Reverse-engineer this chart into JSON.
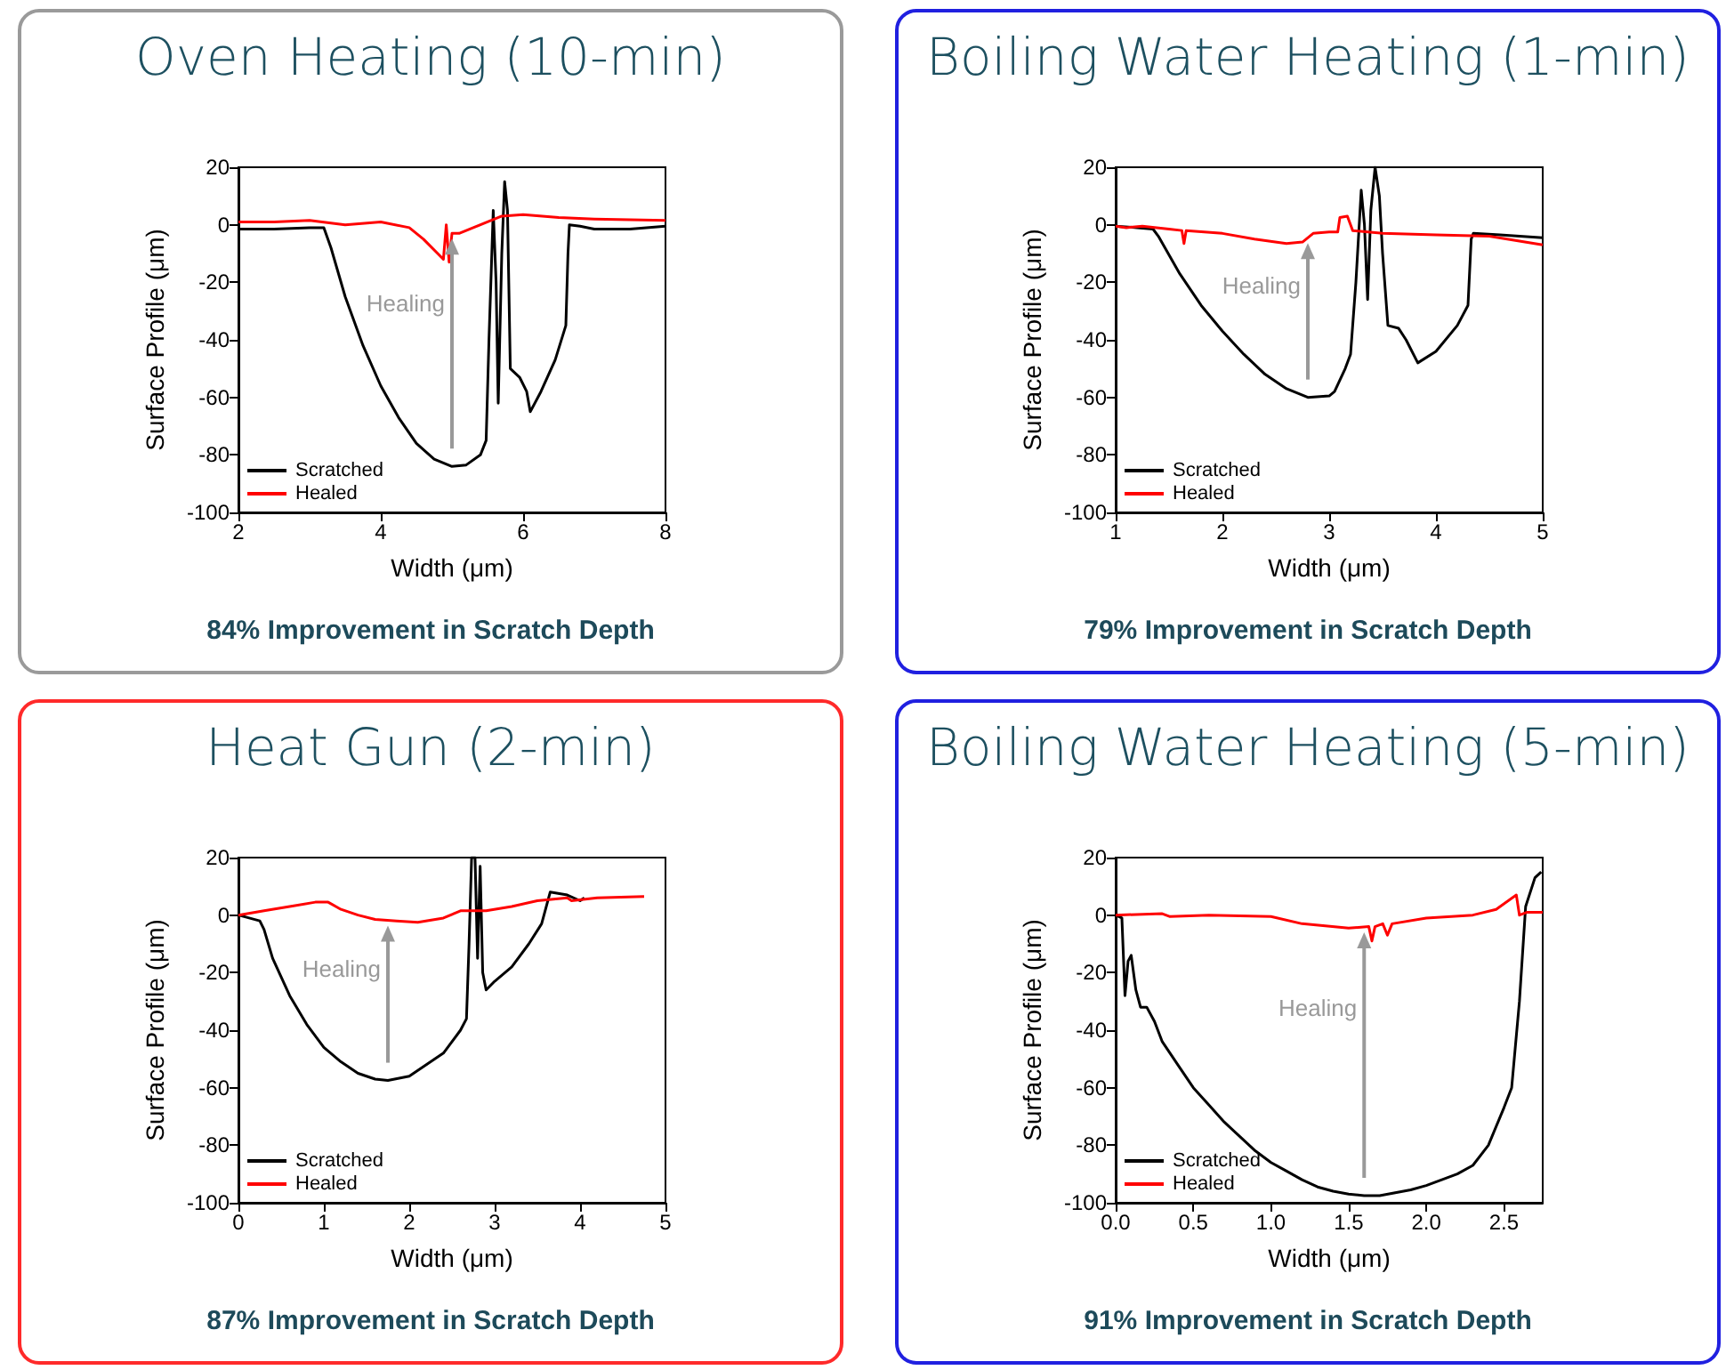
{
  "chart_data": [
    {
      "type": "line",
      "title": "Oven Heating (10-min)",
      "xlabel": "Width (μm)",
      "ylabel": "Surface Profile (μm)",
      "xlim": [
        2,
        8
      ],
      "xticks": [
        2,
        4,
        6,
        8
      ],
      "ylim": [
        -100,
        20
      ],
      "yticks": [
        -100,
        -80,
        -60,
        -40,
        -20,
        0,
        20
      ],
      "grid": false,
      "legend": "bottom left",
      "marker": "none",
      "line_style": "solid",
      "annotations": [
        "Healing",
        "84% Improvement in Scratch Depth"
      ],
      "series": [
        {
          "name": "Scratched",
          "color": "#000000",
          "x": [
            2,
            2.5,
            3.0,
            3.2,
            3.3,
            3.5,
            3.75,
            4.0,
            4.25,
            4.5,
            4.75,
            5.0,
            5.2,
            5.4,
            5.48,
            5.52,
            5.58,
            5.62,
            5.65,
            5.7,
            5.74,
            5.78,
            5.82,
            5.95,
            6.05,
            6.1,
            6.25,
            6.45,
            6.6,
            6.63,
            6.65,
            6.8,
            7.0,
            7.5,
            8
          ],
          "values": [
            -1.5,
            -1.5,
            -1,
            -1,
            -8,
            -25,
            -42,
            -56,
            -67,
            -76,
            -81.5,
            -84,
            -83.5,
            -80,
            -75,
            -40,
            5,
            -20,
            -62,
            -10,
            15,
            5,
            -50,
            -53,
            -58,
            -65,
            -58,
            -47,
            -35,
            -10,
            0,
            -0.5,
            -1.5,
            -1.5,
            -0.5
          ]
        },
        {
          "name": "Healed",
          "color": "#ff0000",
          "x": [
            2,
            2.5,
            3.0,
            3.5,
            4.0,
            4.4,
            4.6,
            4.8,
            4.88,
            4.92,
            4.96,
            5.0,
            5.1,
            5.3,
            5.5,
            5.7,
            6.0,
            6.5,
            7.0,
            8
          ],
          "values": [
            1,
            1,
            1.5,
            0,
            1,
            -1,
            -5,
            -10,
            -12,
            0,
            -13,
            -3,
            -3,
            -1,
            1,
            3,
            3.5,
            2.5,
            2,
            1.5
          ]
        }
      ]
    },
    {
      "type": "line",
      "title": "Boiling Water Heating (1-min)",
      "xlabel": "Width (μm)",
      "ylabel": "Surface Profile (μm)",
      "xlim": [
        1,
        5
      ],
      "xticks": [
        1,
        2,
        3,
        4,
        5
      ],
      "ylim": [
        -100,
        20
      ],
      "yticks": [
        -100,
        -80,
        -60,
        -40,
        -20,
        0,
        20
      ],
      "grid": false,
      "legend": "bottom left",
      "marker": "none",
      "line_style": "solid",
      "annotations": [
        "Healing",
        "79% Improvement in Scratch Depth"
      ],
      "series": [
        {
          "name": "Scratched",
          "color": "#000000",
          "x": [
            1,
            1.2,
            1.35,
            1.4,
            1.6,
            1.8,
            2.0,
            2.2,
            2.4,
            2.6,
            2.8,
            3.0,
            3.05,
            3.15,
            3.2,
            3.25,
            3.3,
            3.33,
            3.36,
            3.39,
            3.43,
            3.47,
            3.5,
            3.55,
            3.65,
            3.72,
            3.83,
            4.0,
            4.2,
            4.3,
            4.33,
            4.35,
            4.6,
            5
          ],
          "values": [
            -0.5,
            -1,
            -1.5,
            -4,
            -17,
            -28,
            -37,
            -45,
            -52,
            -57,
            -60,
            -59.5,
            -58,
            -50,
            -45,
            -20,
            12,
            0,
            -26,
            5,
            20,
            10,
            -10,
            -35,
            -36,
            -40,
            -48,
            -44,
            -35,
            -28,
            -5,
            -3,
            -3.5,
            -4.5
          ]
        },
        {
          "name": "Healed",
          "color": "#ff0000",
          "x": [
            1,
            1.1,
            1.25,
            1.5,
            1.62,
            1.64,
            1.66,
            2.0,
            2.3,
            2.6,
            2.75,
            2.85,
            3.0,
            3.08,
            3.1,
            3.17,
            3.22,
            3.5,
            4.0,
            4.5,
            5
          ],
          "values": [
            -0.5,
            -1,
            -0.5,
            -1.5,
            -2,
            -6.5,
            -2,
            -3,
            -5,
            -6.5,
            -6,
            -3,
            -2.5,
            -2.5,
            2.5,
            3,
            -2,
            -3,
            -3.5,
            -4,
            -7
          ]
        }
      ]
    },
    {
      "type": "line",
      "title": "Heat Gun (2-min)",
      "xlabel": "Width (μm)",
      "ylabel": "Surface Profile (μm)",
      "xlim": [
        0,
        5
      ],
      "xticks": [
        0,
        1,
        2,
        3,
        4,
        5
      ],
      "ylim": [
        -100,
        20
      ],
      "yticks": [
        -100,
        -80,
        -60,
        -40,
        -20,
        0,
        20
      ],
      "grid": false,
      "legend": "bottom left",
      "marker": "none",
      "line_style": "solid",
      "annotations": [
        "Healing",
        "87% Improvement in Scratch Depth"
      ],
      "series": [
        {
          "name": "Scratched",
          "color": "#000000",
          "x": [
            0,
            0.25,
            0.3,
            0.4,
            0.6,
            0.8,
            1.0,
            1.2,
            1.4,
            1.6,
            1.75,
            2.0,
            2.2,
            2.4,
            2.6,
            2.67,
            2.7,
            2.73,
            2.77,
            2.8,
            2.83,
            2.86,
            2.9,
            3.0,
            3.2,
            3.4,
            3.55,
            3.65,
            3.85,
            4.0,
            4.05
          ],
          "values": [
            0,
            -2,
            -5,
            -15,
            -28,
            -38,
            -46,
            -51,
            -55,
            -57,
            -57.5,
            -56,
            -52,
            -48,
            -40,
            -36,
            -10,
            20,
            20,
            -15,
            17,
            -20,
            -26,
            -23,
            -18,
            -10,
            -3,
            8,
            7,
            5,
            6
          ]
        },
        {
          "name": "Healed",
          "color": "#ff0000",
          "x": [
            0,
            0.3,
            0.6,
            0.9,
            1.05,
            1.2,
            1.4,
            1.6,
            1.85,
            2.1,
            2.4,
            2.6,
            2.9,
            3.2,
            3.5,
            3.85,
            3.9,
            4.2,
            4.75
          ],
          "values": [
            0,
            1.5,
            3,
            4.5,
            4.5,
            2,
            0,
            -1.5,
            -2,
            -2.5,
            -1,
            1.5,
            1.5,
            3,
            5,
            6,
            5,
            6,
            6.5
          ]
        }
      ]
    },
    {
      "type": "line",
      "title": "Boiling Water Heating (5-min)",
      "xlabel": "Width (μm)",
      "ylabel": "Surface Profile (μm)",
      "xlim": [
        0,
        2.75
      ],
      "xticks": [
        {
          "value": 0,
          "label": "0.0"
        },
        0.5,
        {
          "value": 1,
          "label": "1.0"
        },
        1.5,
        {
          "value": 2,
          "label": "2.0"
        },
        2.5
      ],
      "ylim": [
        -100,
        20
      ],
      "yticks": [
        -100,
        -80,
        -60,
        -40,
        -20,
        0,
        20
      ],
      "grid": false,
      "legend": "bottom left",
      "marker": "none",
      "line_style": "solid",
      "annotations": [
        "Healing",
        "91% Improvement in Scratch Depth"
      ],
      "series": [
        {
          "name": "Scratched",
          "color": "#000000",
          "x": [
            0,
            0.04,
            0.06,
            0.08,
            0.1,
            0.13,
            0.16,
            0.2,
            0.25,
            0.3,
            0.4,
            0.5,
            0.6,
            0.7,
            0.8,
            0.9,
            1.0,
            1.1,
            1.2,
            1.3,
            1.4,
            1.5,
            1.6,
            1.7,
            1.8,
            1.9,
            2.0,
            2.1,
            2.2,
            2.3,
            2.4,
            2.5,
            2.55,
            2.6,
            2.64,
            2.7,
            2.74
          ],
          "values": [
            0,
            -1,
            -28,
            -16,
            -14,
            -26,
            -32,
            -32,
            -37,
            -44,
            -52,
            -60,
            -66,
            -72,
            -77,
            -82,
            -86,
            -89,
            -92,
            -94.5,
            -96,
            -97,
            -97.5,
            -97.5,
            -96.5,
            -95.5,
            -94,
            -92,
            -90,
            -87,
            -80,
            -67,
            -60,
            -30,
            3,
            13,
            15
          ]
        },
        {
          "name": "Healed",
          "color": "#ff0000",
          "x": [
            0,
            0.3,
            0.35,
            0.6,
            1.0,
            1.2,
            1.5,
            1.63,
            1.65,
            1.67,
            1.72,
            1.75,
            1.78,
            2.0,
            2.3,
            2.45,
            2.58,
            2.6,
            2.65,
            2.75
          ],
          "values": [
            0,
            0.5,
            -0.5,
            0,
            -0.5,
            -3,
            -4.5,
            -4,
            -9,
            -4,
            -3,
            -7,
            -3,
            -1,
            0,
            2,
            7,
            0,
            1,
            1
          ]
        }
      ]
    }
  ]
}
